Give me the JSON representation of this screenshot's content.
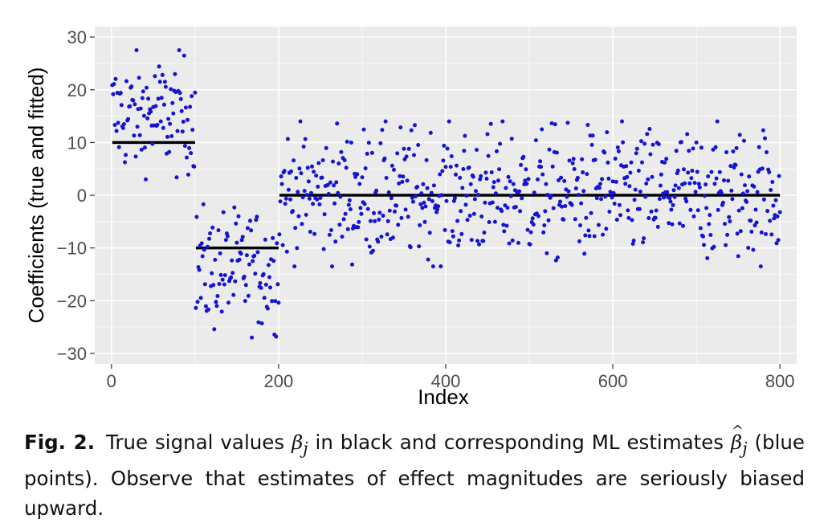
{
  "chart_data": {
    "type": "scatter",
    "ylabel": "Coefficients (true and fitted)",
    "xlabel": "Index",
    "xlim": [
      -20,
      820
    ],
    "ylim": [
      -32,
      32
    ],
    "x_ticks": [
      0,
      200,
      400,
      600,
      800
    ],
    "x_tick_labels": [
      "0",
      "200",
      "400",
      "600",
      "800"
    ],
    "y_ticks": [
      30,
      20,
      10,
      0,
      -10,
      -20,
      -30
    ],
    "y_tick_labels": [
      "30",
      "20",
      "10",
      "0",
      "−10",
      "−20",
      "−30"
    ],
    "grid": true,
    "background": "#ebebeb",
    "point_color": "#1414d2",
    "line_color": "#000000",
    "true_signal": [
      {
        "x_start": 1,
        "x_end": 100,
        "y": 10
      },
      {
        "x_start": 101,
        "x_end": 200,
        "y": -10
      },
      {
        "x_start": 201,
        "x_end": 800,
        "y": 0
      }
    ],
    "estimate_groups": [
      {
        "x_start": 1,
        "x_end": 100,
        "true_value": 10,
        "count": 100,
        "range": [
          3,
          27.5
        ]
      },
      {
        "x_start": 101,
        "x_end": 200,
        "true_value": -10,
        "count": 100,
        "range": [
          -27,
          -1.5
        ]
      },
      {
        "x_start": 201,
        "x_end": 800,
        "true_value": 0,
        "count": 600,
        "range": [
          -13.5,
          14
        ]
      }
    ]
  },
  "caption": {
    "label": "Fig. 2.",
    "part1": "True signal values",
    "beta": "β",
    "sub": "j",
    "part2": "in black and corresponding ML estimates",
    "part3": "(blue points). Observe that estimates of effect magnitudes are seriously biased upward."
  }
}
